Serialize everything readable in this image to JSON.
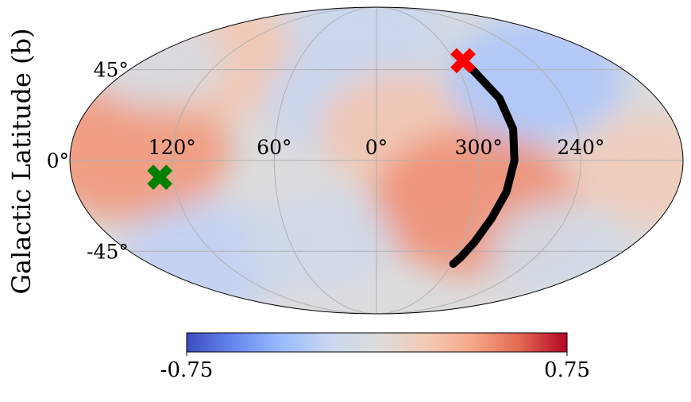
{
  "chart_data": {
    "type": "heatmap",
    "projection": "mollweide",
    "coordinate_system": "galactic",
    "ylabel": "Galactic Latitude (b)",
    "xlabel": "",
    "title": "",
    "lon_ticks": [
      {
        "value": 120,
        "label": "120°"
      },
      {
        "value": 60,
        "label": "60°"
      },
      {
        "value": 0,
        "label": "0°"
      },
      {
        "value": 300,
        "label": "300°"
      },
      {
        "value": 240,
        "label": "240°"
      }
    ],
    "lat_ticks": [
      {
        "value": 45,
        "label": "45°"
      },
      {
        "value": 0,
        "label": "0°"
      },
      {
        "value": -45,
        "label": "-45°"
      }
    ],
    "grid": true,
    "colormap": "coolwarm",
    "colorbar": {
      "min": -0.75,
      "max": 0.75,
      "min_label": "-0.75",
      "max_label": "0.75",
      "placement": "bottom",
      "colors": [
        "#3b4cc0",
        "#6788ee",
        "#9abbff",
        "#c9d7f0",
        "#dddddd",
        "#f2cbb7",
        "#f7a889",
        "#e26952",
        "#b40426"
      ]
    },
    "field_blobs": [
      {
        "lon": 145,
        "lat": 5,
        "value": 0.42
      },
      {
        "lon": 120,
        "lat": 50,
        "value": 0.22
      },
      {
        "lon": 135,
        "lat": -50,
        "value": -0.22
      },
      {
        "lon": 20,
        "lat": 30,
        "value": -0.2
      },
      {
        "lon": 10,
        "lat": 70,
        "value": -0.18
      },
      {
        "lon": 345,
        "lat": 15,
        "value": 0.22
      },
      {
        "lon": 300,
        "lat": -20,
        "value": 0.45
      },
      {
        "lon": 250,
        "lat": 40,
        "value": -0.3
      },
      {
        "lon": 200,
        "lat": -5,
        "value": 0.18
      },
      {
        "lon": 40,
        "lat": -40,
        "value": -0.12
      },
      {
        "lon": 225,
        "lat": -45,
        "value": -0.1
      },
      {
        "lon": 170,
        "lat": 50,
        "value": -0.06
      }
    ],
    "markers": [
      {
        "name": "green-x-marker",
        "lon": 128,
        "lat": -8,
        "color": "#008000",
        "symbol": "X"
      },
      {
        "name": "red-x-marker",
        "lon": 293,
        "lat": 50,
        "color": "#ff0000",
        "symbol": "X"
      }
    ],
    "track": {
      "color": "#000000",
      "points": [
        [
          290,
          45
        ],
        [
          281,
          30
        ],
        [
          278,
          15
        ],
        [
          279,
          0
        ],
        [
          282,
          -15
        ],
        [
          287,
          -28
        ],
        [
          292,
          -40
        ],
        [
          296,
          -48
        ],
        [
          299,
          -52
        ]
      ]
    }
  }
}
